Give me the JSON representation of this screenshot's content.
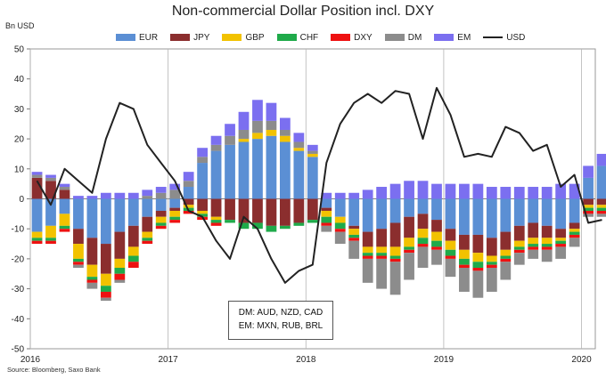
{
  "chart_data": {
    "type": "bar",
    "stacked": true,
    "title": "Non-commercial Dollar Position incl. DXY",
    "ylabel": "Bn USD",
    "ylim": [
      -50,
      50
    ],
    "yticks": [
      50,
      40,
      30,
      20,
      10,
      0,
      -10,
      -20,
      -30,
      -40,
      -50
    ],
    "xticks": [
      "2016",
      "2017",
      "2018",
      "2019",
      "2020"
    ],
    "x_start": 2016.0,
    "x_end": 2020.1,
    "annotation": [
      "DM: AUD, NZD, CAD",
      "EM: MXN, RUB, BRL"
    ],
    "source": "Source: Bloomberg, Saxo Bank",
    "colors": {
      "EUR": "#5b8fd4",
      "JPY": "#8b2e2e",
      "GBP": "#f2c200",
      "CHF": "#1faa4a",
      "DXY": "#ee1111",
      "DM": "#8c8c8c",
      "EM": "#7b6ff0",
      "USD": "#222222"
    },
    "x": [
      2016.0,
      2016.1,
      2016.2,
      2016.3,
      2016.4,
      2016.5,
      2016.6,
      2016.7,
      2016.8,
      2016.9,
      2017.0,
      2017.1,
      2017.2,
      2017.3,
      2017.4,
      2017.5,
      2017.6,
      2017.7,
      2017.8,
      2017.9,
      2018.0,
      2018.1,
      2018.2,
      2018.3,
      2018.4,
      2018.5,
      2018.6,
      2018.7,
      2018.8,
      2018.9,
      2019.0,
      2019.1,
      2019.2,
      2019.3,
      2019.4,
      2019.5,
      2019.6,
      2019.7,
      2019.8,
      2019.9,
      2020.0,
      2020.1
    ],
    "series": [
      {
        "name": "EUR",
        "values": [
          -11,
          -9,
          -5,
          -10,
          -13,
          -15,
          -11,
          -9,
          -6,
          -4,
          -3,
          4,
          12,
          16,
          18,
          19,
          20,
          21,
          19,
          16,
          14,
          -3,
          -6,
          -9,
          -11,
          -10,
          -8,
          -6,
          -5,
          -7,
          -10,
          -12,
          -12,
          -13,
          -11,
          -9,
          -8,
          -9,
          -10,
          -8,
          7,
          11
        ]
      },
      {
        "name": "JPY",
        "values": [
          7,
          6,
          3,
          -5,
          -9,
          -10,
          -9,
          -7,
          -5,
          -2,
          -1,
          -2,
          -4,
          -6,
          -7,
          -8,
          -8,
          -9,
          -9,
          -8,
          -7,
          -1,
          0,
          -1,
          -5,
          -6,
          -8,
          -7,
          -5,
          -4,
          -4,
          -5,
          -6,
          -6,
          -6,
          -5,
          -5,
          -4,
          -3,
          -2,
          -2,
          -2
        ]
      },
      {
        "name": "GBP",
        "values": [
          -2,
          -4,
          -4,
          -5,
          -4,
          -4,
          -3,
          -3,
          -2,
          -2,
          -2,
          -1,
          -1,
          -1,
          0,
          1,
          2,
          2,
          2,
          1,
          1,
          -2,
          -2,
          -2,
          -2,
          -2,
          -3,
          -3,
          -3,
          -3,
          -3,
          -3,
          -3,
          -2,
          -2,
          -2,
          -2,
          -2,
          -1,
          -1,
          -1,
          -1
        ]
      },
      {
        "name": "CHF",
        "values": [
          -1,
          -1,
          -1,
          -1,
          -1,
          -2,
          -2,
          -2,
          -1,
          -1,
          -1,
          -1,
          -1,
          -1,
          -1,
          -2,
          -2,
          -2,
          -1,
          -1,
          -1,
          -2,
          -2,
          -1,
          -1,
          -1,
          -1,
          -1,
          -2,
          -2,
          -2,
          -2,
          -2,
          -1,
          -1,
          -1,
          -1,
          -1,
          -1,
          -1,
          -1,
          -1
        ]
      },
      {
        "name": "DXY",
        "values": [
          -1,
          -1,
          -1,
          -1,
          -1,
          -2,
          -2,
          -2,
          -1,
          -1,
          -1,
          -1,
          -1,
          -1,
          0,
          0,
          0,
          0,
          0,
          0,
          0,
          -1,
          -1,
          -1,
          -1,
          -1,
          -1,
          -1,
          -1,
          -1,
          -1,
          -1,
          -1,
          -1,
          -1,
          -1,
          -1,
          -1,
          -1,
          -1,
          -1,
          -1
        ]
      },
      {
        "name": "DM",
        "values": [
          1,
          1,
          1,
          -1,
          -2,
          -1,
          -1,
          0,
          1,
          2,
          3,
          2,
          2,
          2,
          3,
          3,
          4,
          3,
          2,
          2,
          1,
          -2,
          -4,
          -6,
          -8,
          -10,
          -11,
          -9,
          -7,
          -5,
          -6,
          -8,
          -9,
          -8,
          -6,
          -4,
          -3,
          -4,
          -4,
          -3,
          -1,
          -1
        ]
      },
      {
        "name": "EM",
        "values": [
          1,
          1,
          1,
          1,
          1,
          2,
          2,
          2,
          2,
          2,
          2,
          3,
          3,
          3,
          4,
          6,
          7,
          6,
          4,
          3,
          2,
          2,
          2,
          2,
          3,
          4,
          5,
          6,
          6,
          5,
          5,
          5,
          5,
          4,
          4,
          4,
          4,
          4,
          5,
          5,
          4,
          4
        ]
      }
    ],
    "line": {
      "name": "USD",
      "values": [
        6,
        -2,
        10,
        6,
        2,
        20,
        32,
        30,
        18,
        12,
        6,
        -4,
        -6,
        -14,
        -20,
        -6,
        -10,
        -20,
        -28,
        -24,
        -22,
        12,
        25,
        32,
        35,
        32,
        36,
        35,
        20,
        37,
        28,
        14,
        15,
        14,
        24,
        22,
        16,
        18,
        4,
        8,
        -8,
        -7
      ]
    }
  },
  "legend": [
    {
      "name": "EUR",
      "kind": "bar"
    },
    {
      "name": "JPY",
      "kind": "bar"
    },
    {
      "name": "GBP",
      "kind": "bar"
    },
    {
      "name": "CHF",
      "kind": "bar"
    },
    {
      "name": "DXY",
      "kind": "bar"
    },
    {
      "name": "DM",
      "kind": "bar"
    },
    {
      "name": "EM",
      "kind": "bar"
    },
    {
      "name": "USD",
      "kind": "line"
    }
  ]
}
